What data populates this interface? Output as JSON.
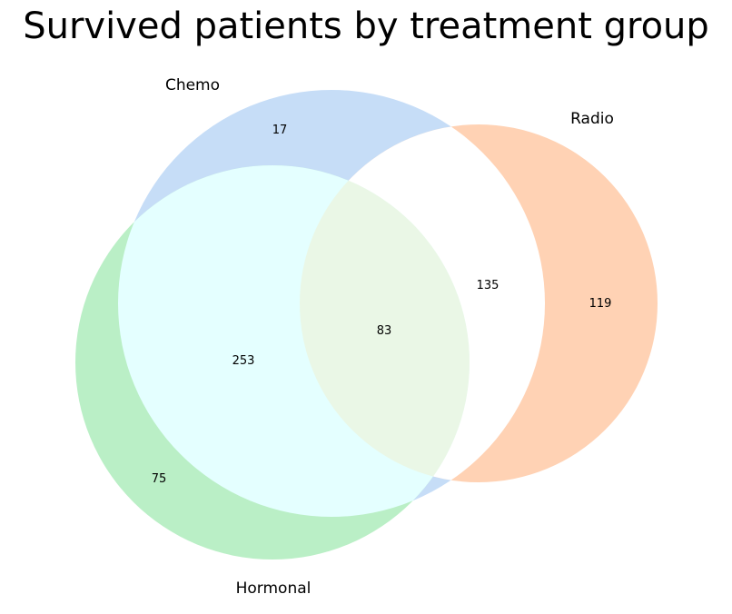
{
  "title": "Survived patients by treatment group",
  "sets": [
    {
      "name": "Chemo",
      "color": "#c6ddf7"
    },
    {
      "name": "Radio",
      "color": "#ffd2b4"
    },
    {
      "name": "Hormonal",
      "color": "#baefc6"
    }
  ],
  "regions": {
    "chemo_only": "17",
    "radio_only": "119",
    "hormonal_only": "75",
    "chemo_radio": "135",
    "chemo_hormonal": "253",
    "radio_hormonal": "",
    "all_three": "83"
  },
  "region_colors": {
    "chemo_radio": "#ffffff",
    "chemo_hormonal": "#e4ffff",
    "all_three": "#eaf7e6"
  }
}
